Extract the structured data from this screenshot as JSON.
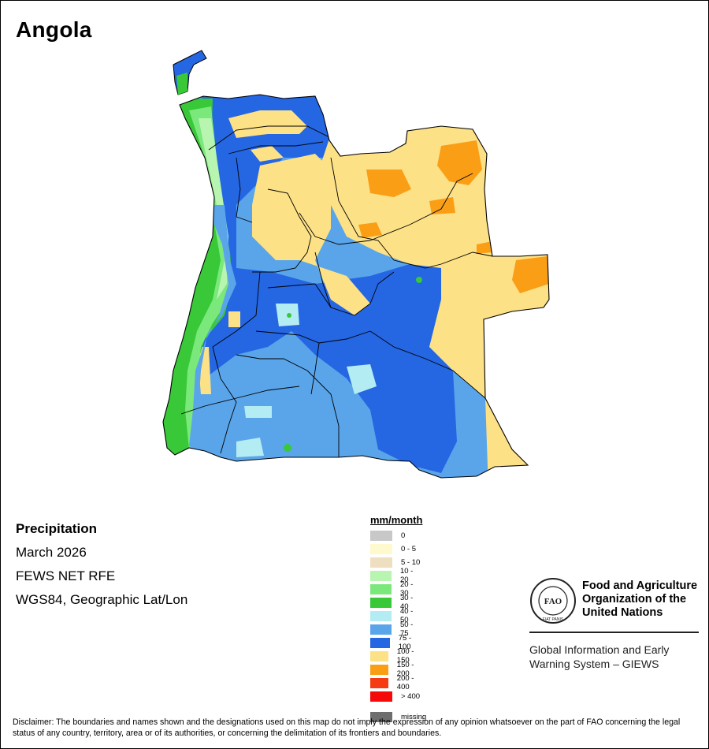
{
  "title": "Angola",
  "info": {
    "variable": "Precipitation",
    "period": "March 2026",
    "source": "FEWS NET RFE",
    "projection": "WGS84, Geographic Lat/Lon"
  },
  "legend": {
    "title": "mm/month",
    "classes": [
      {
        "label": "0",
        "color": "#c8c8c8"
      },
      {
        "label": "0 - 5",
        "color": "#fffacd"
      },
      {
        "label": "5 - 10",
        "color": "#eedfc0"
      },
      {
        "label": "10 - 20",
        "color": "#b8f5b0"
      },
      {
        "label": "20 - 30",
        "color": "#7be87b"
      },
      {
        "label": "30 - 40",
        "color": "#38c838"
      },
      {
        "label": "40 - 50",
        "color": "#b4ecf4"
      },
      {
        "label": "50 - 75",
        "color": "#5aa5ea"
      },
      {
        "label": "75 - 100",
        "color": "#2566e2"
      },
      {
        "label": "100 - 150",
        "color": "#fde186"
      },
      {
        "label": "150 - 200",
        "color": "#fa9e16"
      },
      {
        "label": "200 - 400",
        "color": "#f53b14"
      },
      {
        "label": "> 400",
        "color": "#f50a0a"
      }
    ],
    "missing": {
      "label": "missing",
      "color": "#6e6e6e"
    }
  },
  "organization": {
    "logo_text": "FAO",
    "logo_motto": "FIAT PANIS",
    "name_lines": [
      "Food and Agriculture",
      "Organization of the",
      "United Nations"
    ],
    "system_lines": [
      "Global Information and Early",
      "Warning System – GIEWS"
    ]
  },
  "disclaimer": "Disclaimer: The boundaries and names shown and the designations used on this map do not imply the expression of any opinion whatsoever on the part of FAO concerning the legal status of any country, territory, area or of its authorities, or concerning the delimitation of its frontiers and boundaries."
}
